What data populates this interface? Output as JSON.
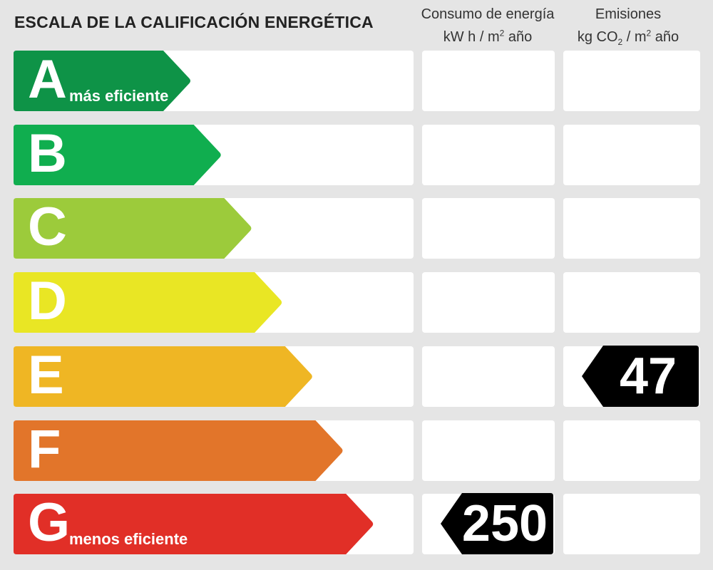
{
  "title": "ESCALA DE LA CALIFICACIÓN ENERGÉTICA",
  "columns": {
    "energy": {
      "line1": "Consumo de energía",
      "unit_pre": "kW h  / m",
      "sup": "2",
      "unit_post": " año"
    },
    "emissions": {
      "line1": "Emisiones",
      "unit_pre": "kg CO",
      "sub": "2",
      "mid": "  / m",
      "sup": "2",
      "unit_post": " año"
    }
  },
  "ratings": [
    {
      "letter": "A",
      "label": "más eficiente",
      "color": "#0e9347"
    },
    {
      "letter": "B",
      "label": "",
      "color": "#10ae4f"
    },
    {
      "letter": "C",
      "label": "",
      "color": "#9ccb3b"
    },
    {
      "letter": "D",
      "label": "",
      "color": "#e9e624"
    },
    {
      "letter": "E",
      "label": "",
      "color": "#efb624"
    },
    {
      "letter": "F",
      "label": "",
      "color": "#e2752a"
    },
    {
      "letter": "G",
      "label": "menos eficiente",
      "color": "#e12f27"
    }
  ],
  "results": {
    "energy": {
      "value": "250",
      "rating": "G"
    },
    "emissions": {
      "value": "47",
      "rating": "E"
    }
  }
}
